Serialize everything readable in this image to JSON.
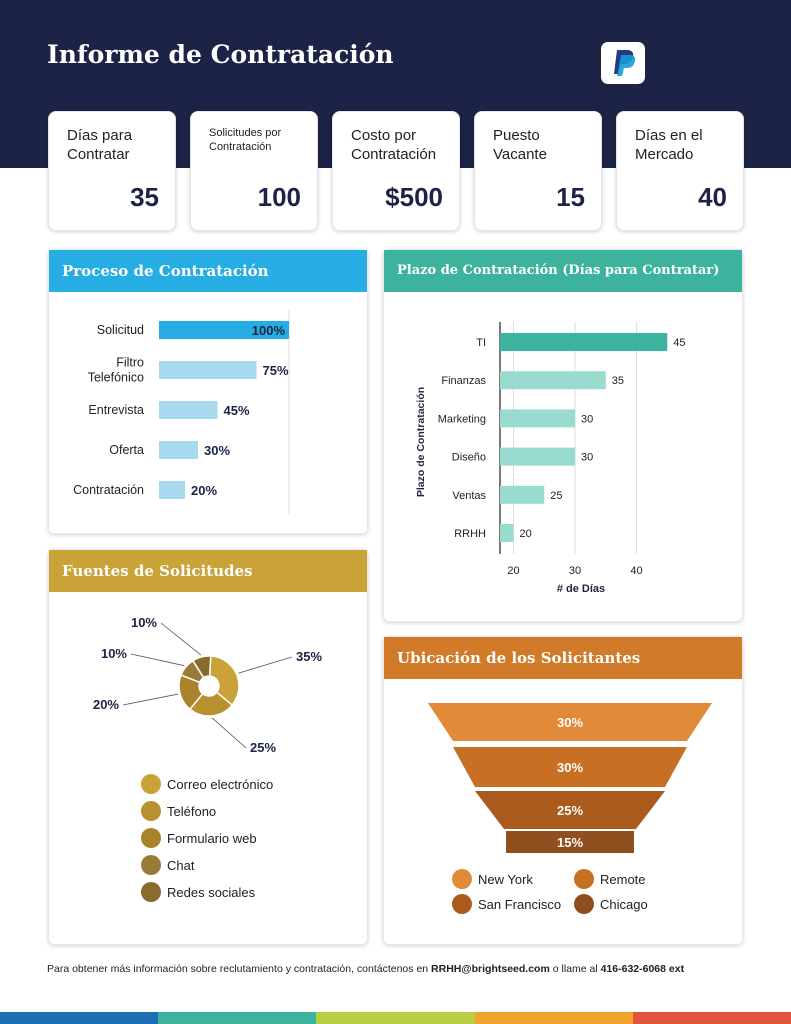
{
  "title": "Informe de Contratación",
  "logo_icon": "paypal-logo",
  "kpis": [
    {
      "label": "Días para Contratar",
      "value": "35"
    },
    {
      "label": "Solicitudes por Contratación",
      "value": "100"
    },
    {
      "label": "Costo por Contratación",
      "value": "$500"
    },
    {
      "label": "Puesto Vacante",
      "value": "15"
    },
    {
      "label": "Días en el Mercado",
      "value": "40"
    }
  ],
  "colors": {
    "navy": "#1d2347",
    "blue": "#26aee4",
    "teal": "#3db39e",
    "gold": "#c9a238",
    "orange": "#d07a2a"
  },
  "chart_data": [
    {
      "type": "bar",
      "title": "Proceso de Contratación",
      "categories": [
        "Solicitud",
        "Filtro Telefónico",
        "Entrevista",
        "Oferta",
        "Contratación"
      ],
      "values": [
        100,
        75,
        45,
        30,
        20
      ],
      "labels": [
        "100%",
        "75%",
        "45%",
        "30%",
        "20%"
      ],
      "orientation": "horizontal"
    },
    {
      "type": "bar",
      "title": "Plazo de Contratación (Días para Contratar)",
      "categories": [
        "TI",
        "Finanzas",
        "Marketing",
        "Diseño",
        "Ventas",
        "RRHH"
      ],
      "values": [
        45,
        35,
        30,
        30,
        25,
        20
      ],
      "xlabel": "# de Días",
      "ylabel": "Plazo de Contratación",
      "xticks": [
        "20",
        "30",
        "40"
      ],
      "xlim": [
        17.8,
        48
      ],
      "orientation": "horizontal"
    },
    {
      "type": "pie",
      "title": "Fuentes de Solicitudes",
      "categories": [
        "Correo electrónico",
        "Teléfono",
        "Formulario web",
        "Chat",
        "Redes sociales"
      ],
      "values": [
        35,
        25,
        20,
        10,
        10
      ],
      "labels": [
        "35%",
        "25%",
        "20%",
        "10%",
        "10%"
      ]
    },
    {
      "type": "bar",
      "title": "Ubicación de los Solicitantes",
      "categories": [
        "New York",
        "Remote",
        "San Francisco",
        "Chicago"
      ],
      "values": [
        30,
        30,
        25,
        15
      ],
      "labels": [
        "30%",
        "30%",
        "25%",
        "15%"
      ],
      "style": "funnel"
    }
  ],
  "footer": {
    "text": "Para obtener más información sobre reclutamiento y contratación, contáctenos en ",
    "email": "RRHH@brightseed.com",
    "mid": " o llame al ",
    "phone": "416-632-6068 ext"
  },
  "stripe_colors": [
    "#1f6fb5",
    "#3db39e",
    "#b7cf45",
    "#f0a52a",
    "#e0543b"
  ]
}
